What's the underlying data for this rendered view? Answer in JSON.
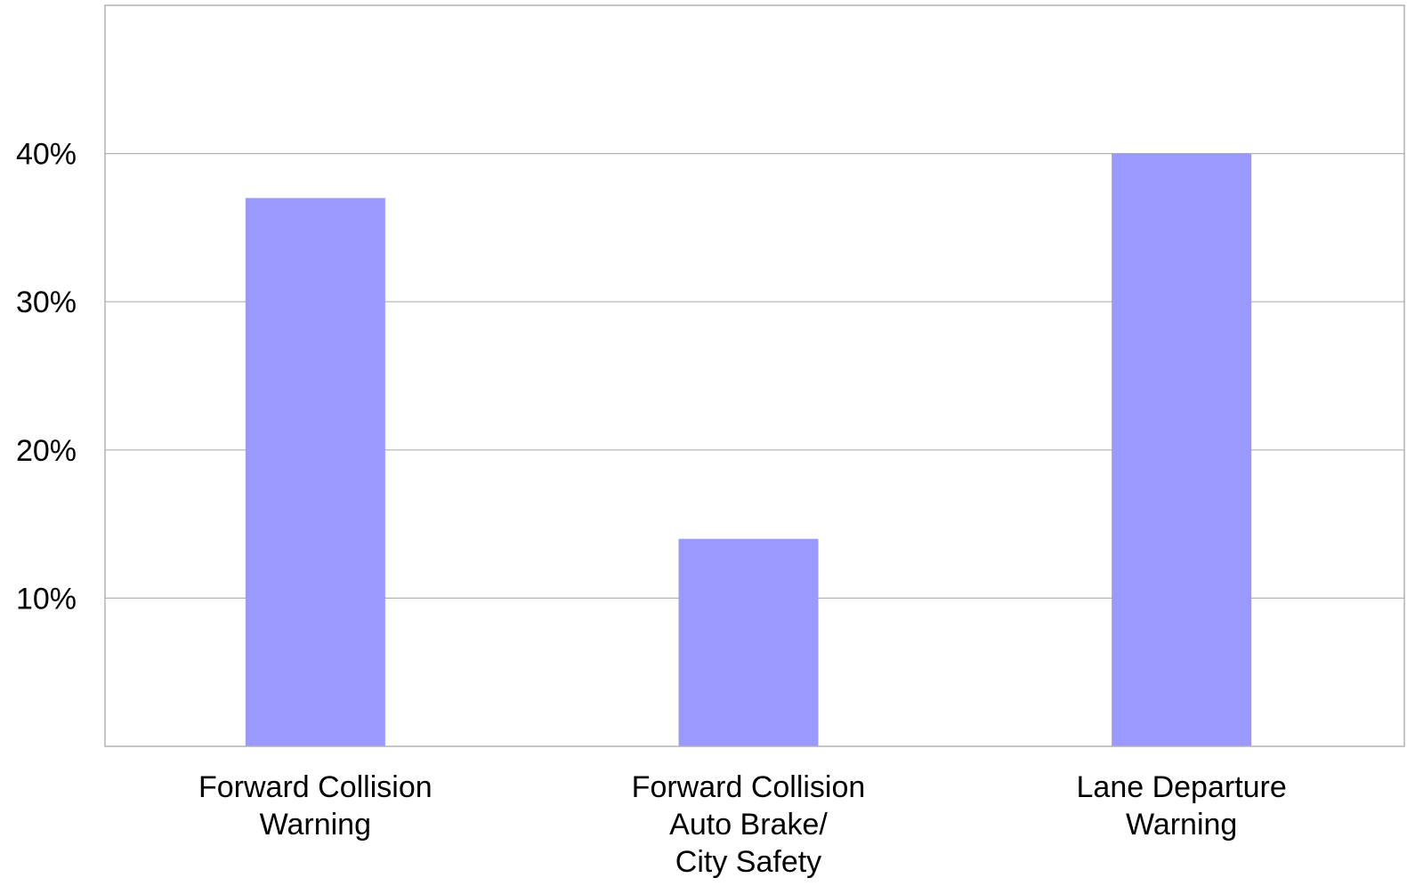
{
  "chart_data": {
    "type": "bar",
    "categories": [
      [
        "Forward Collision",
        "Warning"
      ],
      [
        "Forward Collision",
        "Auto Brake/",
        "City Safety"
      ],
      [
        "Lane Departure",
        "Warning"
      ]
    ],
    "values": [
      37,
      14,
      40
    ],
    "value_unit": "%",
    "title": "",
    "xlabel": "",
    "ylabel": "",
    "ylim": [
      0,
      50
    ],
    "yticks": [
      10,
      20,
      30,
      40
    ],
    "ytick_labels": [
      "10%",
      "20%",
      "30%",
      "40%"
    ],
    "grid": true,
    "legend": "none",
    "bar_color": "#9999ff",
    "grid_color": "#b3b3b3",
    "axis_color": "#b3b3b3"
  }
}
